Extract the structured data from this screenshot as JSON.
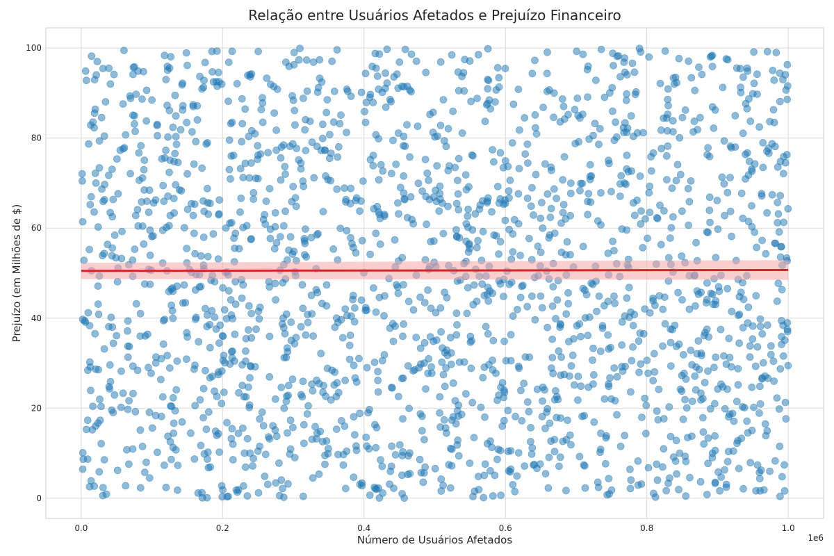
{
  "chart_data": {
    "type": "scatter",
    "title": "Relação entre Usuários Afetados e Prejuízo Financeiro",
    "xlabel": "Número de Usuários Afetados",
    "ylabel": "Prejuízo (em Milhões de $)",
    "x_offset_label": "1e6",
    "xlim": [
      -50000,
      1050000
    ],
    "ylim": [
      -4.5,
      104.5
    ],
    "x_ticks": [
      0,
      200000,
      400000,
      600000,
      800000,
      1000000
    ],
    "x_tick_labels": [
      "0.0",
      "0.2",
      "0.4",
      "0.6",
      "0.8",
      "1.0"
    ],
    "y_ticks": [
      0,
      20,
      40,
      60,
      80,
      100
    ],
    "y_tick_labels": [
      "0",
      "20",
      "40",
      "60",
      "80",
      "100"
    ],
    "grid": true,
    "style": "whitegrid",
    "point_color": "#1f77b4",
    "point_alpha": 0.5,
    "point_count_approx": 2000,
    "x_range_of_points": [
      0,
      1000000
    ],
    "y_range_of_points": [
      0,
      100
    ],
    "regression": {
      "color": "#d62728",
      "ci_color": "#f4a6a6",
      "x": [
        0,
        1000000
      ],
      "y": [
        50.5,
        50.7
      ],
      "ci_lower": [
        48.7,
        48.5
      ],
      "ci_upper": [
        52.3,
        52.9
      ]
    }
  }
}
